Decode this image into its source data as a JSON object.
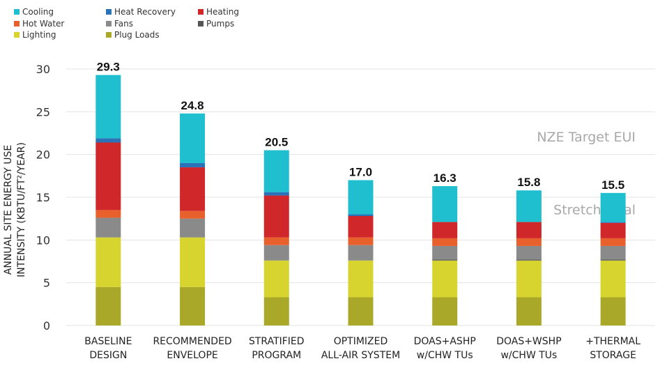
{
  "chart_data": {
    "type": "bar",
    "stacked": true,
    "categories": [
      [
        "BASELINE",
        "DESIGN"
      ],
      [
        "RECOMMENDED",
        "ENVELOPE"
      ],
      [
        "STRATIFIED",
        "PROGRAM"
      ],
      [
        "OPTIMIZED",
        "ALL-AIR SYSTEM"
      ],
      [
        "DOAS+ASHP",
        "w/CHW TUs"
      ],
      [
        "DOAS+WSHP",
        "w/CHW TUs"
      ],
      [
        "+THERMAL",
        "STORAGE"
      ]
    ],
    "series": [
      {
        "name": "Plug Loads",
        "color": "#a9a829",
        "values": [
          4.5,
          4.5,
          3.3,
          3.3,
          3.3,
          3.3,
          3.3
        ]
      },
      {
        "name": "Lighting",
        "color": "#d7d430",
        "values": [
          5.8,
          5.8,
          4.3,
          4.3,
          4.3,
          4.3,
          4.3
        ]
      },
      {
        "name": "Pumps",
        "color": "#555555",
        "values": [
          0,
          0,
          0,
          0,
          0.1,
          0.1,
          0.1
        ]
      },
      {
        "name": "Fans",
        "color": "#8a8a8a",
        "values": [
          2.3,
          2.2,
          1.8,
          1.8,
          1.6,
          1.6,
          1.6
        ]
      },
      {
        "name": "Hot Water",
        "color": "#e8612c",
        "values": [
          0.9,
          0.9,
          0.9,
          0.9,
          0.9,
          0.9,
          0.9
        ]
      },
      {
        "name": "Heating",
        "color": "#d0282a",
        "values": [
          7.9,
          5.1,
          4.9,
          2.5,
          1.9,
          1.9,
          1.8
        ]
      },
      {
        "name": "Heat Recovery",
        "color": "#2a73b8",
        "values": [
          0.5,
          0.5,
          0.4,
          0.2,
          0,
          0,
          0.1
        ]
      },
      {
        "name": "Cooling",
        "color": "#1fbfcf",
        "values": [
          7.4,
          5.8,
          4.9,
          4.0,
          4.2,
          3.7,
          3.4
        ]
      }
    ],
    "totals": [
      "29.3",
      "24.8",
      "20.5",
      "17.0",
      "16.3",
      "15.8",
      "15.5"
    ],
    "ylabel_lines": [
      "ANNUAL SITE ENERGY USE",
      "INTENSITY (KBTU/FT²/YEAR)"
    ],
    "ylim": [
      0,
      30
    ],
    "yticks": [
      0,
      5,
      10,
      15,
      20,
      25,
      30
    ],
    "grid": true,
    "legend_position": "top-left",
    "legend_order": [
      "Cooling",
      "Heat Recovery",
      "Heating",
      "Hot Water",
      "Fans",
      "Pumps",
      "Lighting",
      "Plug Loads"
    ],
    "annotations": [
      {
        "text": "NZE Target EUI",
        "value": 22.0
      },
      {
        "text": "Stretch Goal",
        "value": 13.5
      }
    ]
  }
}
